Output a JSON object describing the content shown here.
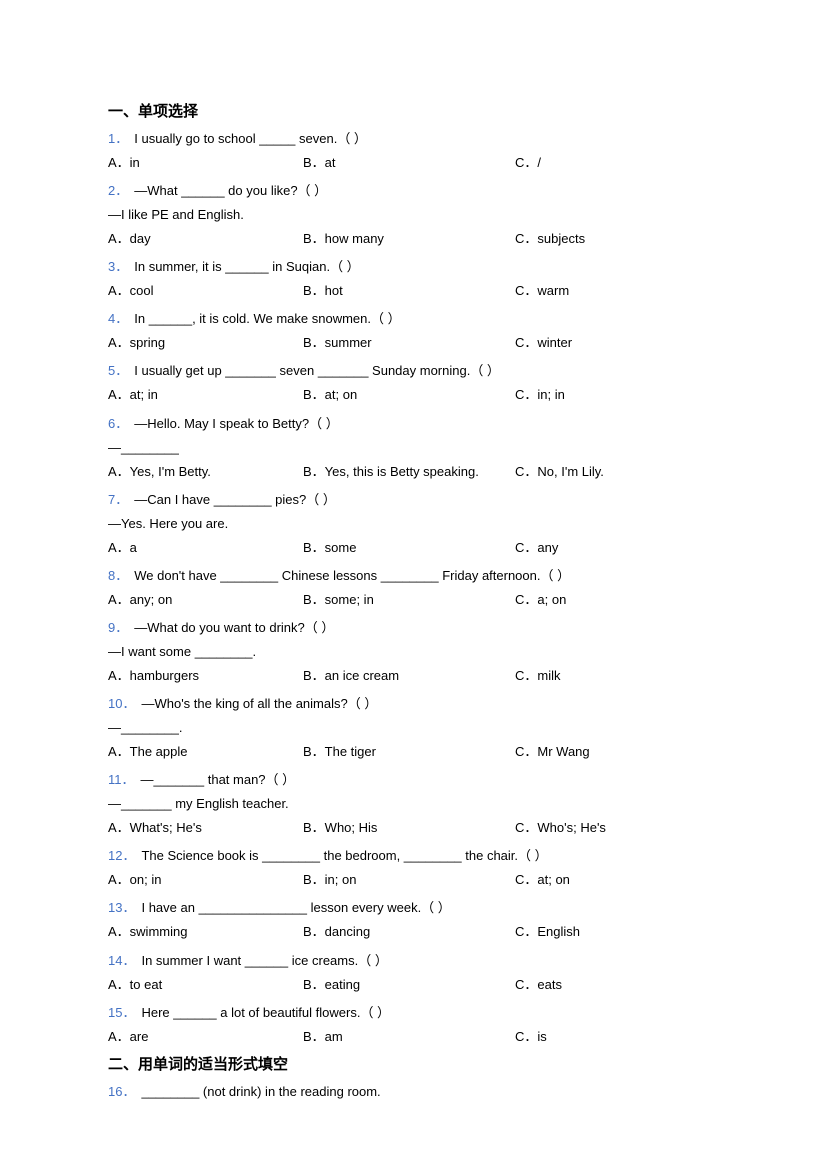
{
  "colors": {
    "number": "#4472c4",
    "text": "#000000",
    "background": "#ffffff"
  },
  "typography": {
    "body_fontsize": 13,
    "title_fontsize": 15,
    "title_weight": "bold",
    "line_height": 1.85
  },
  "section1": {
    "title": "一、单项选择"
  },
  "section2": {
    "title": "二、用单词的适当形式填空"
  },
  "questions": [
    {
      "num": "1．",
      "text": "I usually go to school _____ seven.（   ）",
      "opts": {
        "a": "A．in",
        "b": "B．at",
        "c": "C．/"
      }
    },
    {
      "num": "2．",
      "text": "—What ______ do you like?（   ）",
      "followup": "—I like PE and English.",
      "opts": {
        "a": "A．day",
        "b": "B．how many",
        "c": "C．subjects"
      }
    },
    {
      "num": "3．",
      "text": "In summer, it is ______ in Suqian.（   ）",
      "opts": {
        "a": "A．cool",
        "b": "B．hot",
        "c": "C．warm"
      }
    },
    {
      "num": "4．",
      "text": "In ______, it is cold. We make snowmen.（   ）",
      "opts": {
        "a": "A．spring",
        "b": "B．summer",
        "c": "C．winter"
      }
    },
    {
      "num": "5．",
      "text": "I usually get up _______ seven _______ Sunday morning.（   ）",
      "opts": {
        "a": "A．at; in",
        "b": "B．at; on",
        "c": "C．in; in"
      }
    },
    {
      "num": "6．",
      "text": "—Hello. May I speak to Betty?（   ）",
      "followup": "—________",
      "opts": {
        "a": "A．Yes, I'm Betty.",
        "b": "B．Yes, this is Betty speaking.",
        "c": "C．No, I'm Lily."
      }
    },
    {
      "num": "7．",
      "text": "—Can I have ________ pies?（   ）",
      "followup": "—Yes. Here you are.",
      "opts": {
        "a": "A．a",
        "b": "B．some",
        "c": "C．any"
      }
    },
    {
      "num": "8．",
      "text": "We don't have ________ Chinese lessons ________ Friday afternoon.（   ）",
      "opts": {
        "a": "A．any; on",
        "b": "B．some; in",
        "c": "C．a; on"
      }
    },
    {
      "num": "9．",
      "text": "—What do you want to drink?（   ）",
      "followup": "—I want some ________.",
      "opts": {
        "a": "A．hamburgers",
        "b": "B．an ice cream",
        "c": "C．milk"
      }
    },
    {
      "num": "10．",
      "text": "—Who's the king of all the animals?（   ）",
      "followup": "—________.",
      "opts": {
        "a": "A．The apple",
        "b": "B．The tiger",
        "c": "C．Mr Wang"
      }
    },
    {
      "num": "11．",
      "text": "—_______ that man?（   ）",
      "followup": "—_______ my English teacher.",
      "opts": {
        "a": "A．What's; He's",
        "b": "B．Who; His",
        "c": "C．Who's; He's"
      }
    },
    {
      "num": "12．",
      "text": "The Science book is ________ the bedroom, ________ the chair.（   ）",
      "opts": {
        "a": "A．on; in",
        "b": "B．in; on",
        "c": "C．at; on"
      }
    },
    {
      "num": "13．",
      "text": "I have an _______________ lesson every week.（   ）",
      "opts": {
        "a": "A．swimming",
        "b": "B．dancing",
        "c": "C．English"
      }
    },
    {
      "num": "14．",
      "text": "In summer I want ______ ice creams.（   ）",
      "opts": {
        "a": "A．to eat",
        "b": "B．eating",
        "c": "C．eats"
      }
    },
    {
      "num": "15．",
      "text": "Here ______ a lot of beautiful flowers.（   ）",
      "opts": {
        "a": "A．are",
        "b": "B．am",
        "c": "C．is"
      }
    }
  ],
  "q16": {
    "num": "16．",
    "text": "________ (not drink) in the reading room."
  }
}
